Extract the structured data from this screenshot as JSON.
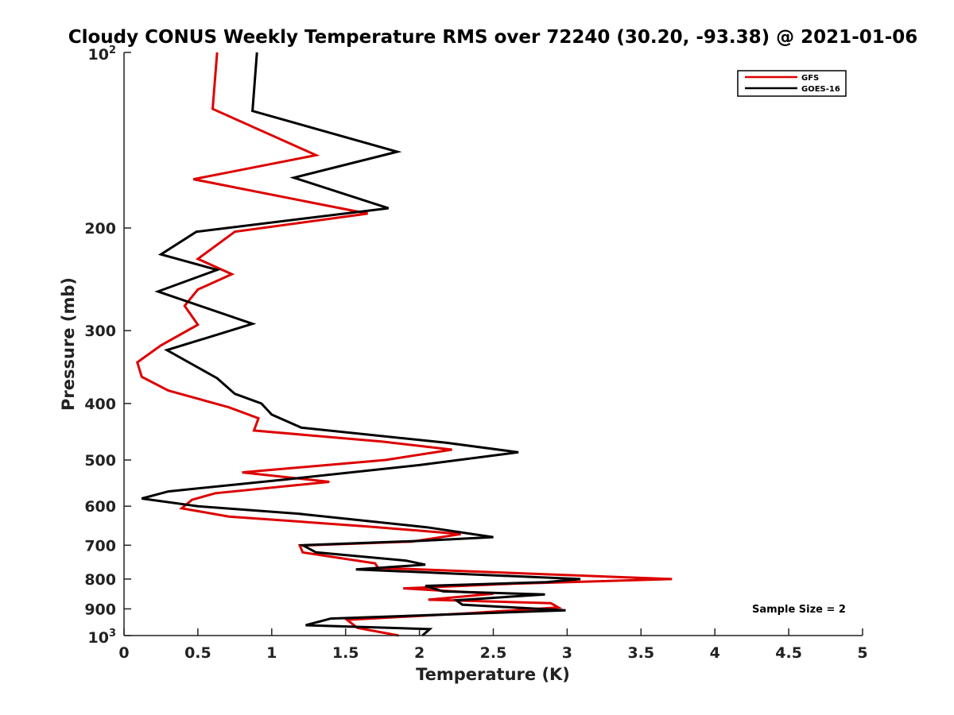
{
  "chart_data": {
    "type": "line",
    "title": "Cloudy CONUS Weekly Temperature RMS over 72240 (30.20, -93.38) @ 2021-01-06",
    "xlabel": "Temperature (K)",
    "ylabel": "Pressure (mb)",
    "xlim": [
      0,
      5
    ],
    "ylim": [
      100,
      1000
    ],
    "y_scale": "log",
    "y_reversed": true,
    "grid": false,
    "legend_position": "top-right",
    "x_ticks": [
      "0",
      "0.5",
      "1",
      "1.5",
      "2",
      "2.5",
      "3",
      "3.5",
      "4",
      "4.5",
      "5"
    ],
    "y_ticks": [
      {
        "value": 100,
        "base": "10",
        "exp": "2"
      },
      {
        "value": 200,
        "base": "200",
        "exp": ""
      },
      {
        "value": 300,
        "base": "300",
        "exp": ""
      },
      {
        "value": 400,
        "base": "400",
        "exp": ""
      },
      {
        "value": 500,
        "base": "500",
        "exp": ""
      },
      {
        "value": 600,
        "base": "600",
        "exp": ""
      },
      {
        "value": 700,
        "base": "700",
        "exp": ""
      },
      {
        "value": 800,
        "base": "800",
        "exp": ""
      },
      {
        "value": 900,
        "base": "900",
        "exp": ""
      },
      {
        "value": 1000,
        "base": "10",
        "exp": "3"
      }
    ],
    "annotation": "Sample Size = 2",
    "series": [
      {
        "name": "GFS",
        "color": "#dd0000",
        "points": [
          [
            0.63,
            100
          ],
          [
            0.6,
            125
          ],
          [
            1.3,
            150
          ],
          [
            0.47,
            165
          ],
          [
            1.65,
            189
          ],
          [
            0.75,
            203
          ],
          [
            0.5,
            226
          ],
          [
            0.73,
            240
          ],
          [
            0.5,
            255
          ],
          [
            0.41,
            272
          ],
          [
            0.5,
            293
          ],
          [
            0.25,
            318
          ],
          [
            0.09,
            340
          ],
          [
            0.12,
            360
          ],
          [
            0.3,
            380
          ],
          [
            0.71,
            406
          ],
          [
            0.91,
            424
          ],
          [
            0.88,
            445
          ],
          [
            1.75,
            465
          ],
          [
            2.22,
            480
          ],
          [
            1.77,
            500
          ],
          [
            0.8,
            525
          ],
          [
            1.39,
            545
          ],
          [
            0.62,
            570
          ],
          [
            0.46,
            585
          ],
          [
            0.39,
            605
          ],
          [
            0.71,
            625
          ],
          [
            1.65,
            650
          ],
          [
            2.28,
            670
          ],
          [
            1.95,
            690
          ],
          [
            1.19,
            701
          ],
          [
            1.21,
            720
          ],
          [
            1.7,
            752
          ],
          [
            1.72,
            766
          ],
          [
            2.0,
            770
          ],
          [
            3.71,
            800
          ],
          [
            2.63,
            815
          ],
          [
            1.89,
            830
          ],
          [
            2.5,
            848
          ],
          [
            2.06,
            868
          ],
          [
            2.89,
            880
          ],
          [
            2.94,
            895
          ],
          [
            2.35,
            915
          ],
          [
            1.51,
            940
          ],
          [
            1.58,
            970
          ],
          [
            1.86,
            1000
          ]
        ]
      },
      {
        "name": "GOES-16",
        "color": "#000000",
        "points": [
          [
            0.9,
            100
          ],
          [
            0.87,
            126
          ],
          [
            1.85,
            148
          ],
          [
            1.15,
            164
          ],
          [
            1.79,
            185
          ],
          [
            0.49,
            203
          ],
          [
            0.25,
            222
          ],
          [
            0.63,
            236
          ],
          [
            0.23,
            257
          ],
          [
            0.87,
            292
          ],
          [
            0.29,
            324
          ],
          [
            0.63,
            362
          ],
          [
            0.75,
            385
          ],
          [
            0.93,
            400
          ],
          [
            1.0,
            418
          ],
          [
            1.2,
            440
          ],
          [
            2.18,
            467
          ],
          [
            2.67,
            485
          ],
          [
            2.0,
            510
          ],
          [
            1.09,
            540
          ],
          [
            0.3,
            566
          ],
          [
            0.12,
            582
          ],
          [
            0.5,
            600
          ],
          [
            1.18,
            618
          ],
          [
            2.05,
            652
          ],
          [
            2.5,
            678
          ],
          [
            2.01,
            688
          ],
          [
            1.21,
            700
          ],
          [
            1.3,
            720
          ],
          [
            1.91,
            744
          ],
          [
            2.04,
            756
          ],
          [
            1.57,
            770
          ],
          [
            3.09,
            800
          ],
          [
            2.86,
            810
          ],
          [
            2.04,
            822
          ],
          [
            2.16,
            840
          ],
          [
            2.85,
            850
          ],
          [
            2.25,
            870
          ],
          [
            2.29,
            885
          ],
          [
            2.99,
            905
          ],
          [
            1.4,
            935
          ],
          [
            1.23,
            960
          ],
          [
            2.07,
            975
          ],
          [
            2.02,
            1000
          ]
        ]
      }
    ]
  }
}
